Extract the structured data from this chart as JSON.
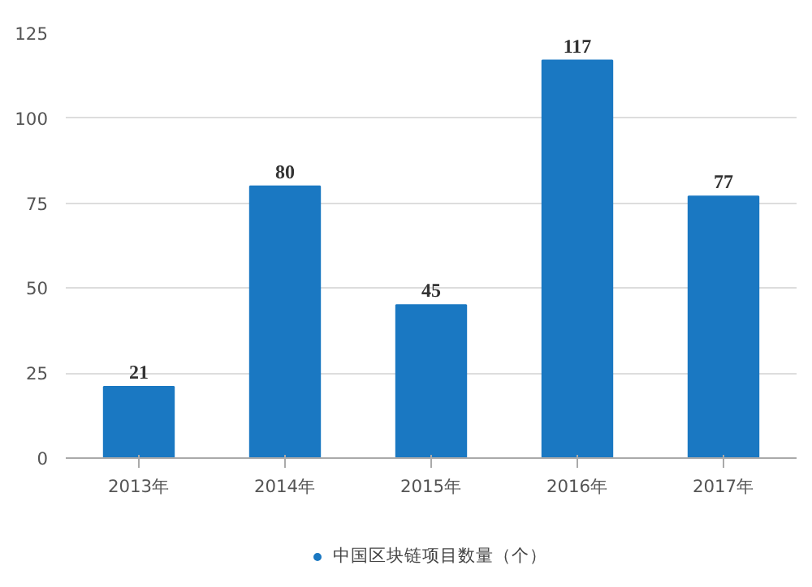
{
  "chart_data": {
    "type": "bar",
    "categories": [
      "2013年",
      "2014年",
      "2015年",
      "2016年",
      "2017年"
    ],
    "series": [
      {
        "name": "中国区块链项目数量（个）",
        "color": "#1a78c2",
        "values": [
          21,
          80,
          45,
          117,
          77
        ]
      }
    ],
    "ylim": [
      0,
      125
    ],
    "yticks": [
      0,
      25,
      50,
      75,
      100,
      125
    ],
    "grid": "y",
    "legend": "bottom",
    "data_labels": true
  }
}
